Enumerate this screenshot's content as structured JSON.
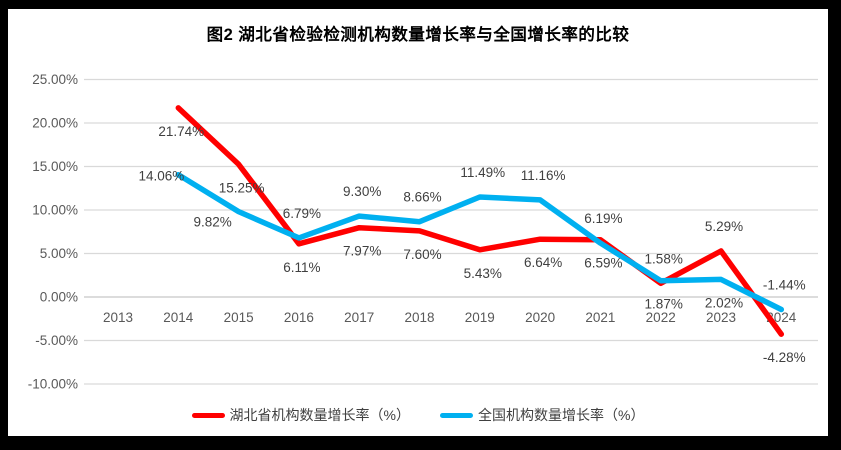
{
  "chart_data": {
    "type": "line",
    "title": "图2  湖北省检验检测机构数量增长率与全国增长率的比较",
    "categories": [
      "2013",
      "2014",
      "2015",
      "2016",
      "2017",
      "2018",
      "2019",
      "2020",
      "2021",
      "2022",
      "2023",
      "2024"
    ],
    "series": [
      {
        "name": "湖北省机构数量增长率（%）",
        "color": "#FF0000",
        "values": [
          null,
          21.74,
          15.25,
          6.11,
          7.97,
          7.6,
          5.43,
          6.64,
          6.59,
          1.58,
          5.29,
          -4.28
        ],
        "labels": [
          null,
          "21.74%",
          "15.25%",
          "6.11%",
          "7.97%",
          "7.60%",
          "5.43%",
          "6.64%",
          "6.59%",
          "1.58%",
          "5.29%",
          "-4.28%"
        ],
        "label_positions": [
          null,
          "below",
          "below",
          "below",
          "below",
          "below",
          "below",
          "below",
          "below",
          "above",
          "above",
          "below"
        ]
      },
      {
        "name": "全国机构数量增长率（%）",
        "color": "#00B0F0",
        "values": [
          null,
          14.06,
          9.82,
          6.79,
          9.3,
          8.66,
          11.49,
          11.16,
          6.19,
          1.87,
          2.02,
          -1.44
        ],
        "labels": [
          null,
          "14.06%",
          "9.82%",
          "6.79%",
          "9.30%",
          "8.66%",
          "11.49%",
          "11.16%",
          "6.19%",
          "1.87%",
          "2.02%",
          "-1.44%"
        ],
        "label_positions": [
          null,
          "left",
          "below-left",
          "above",
          "above",
          "above",
          "above",
          "above",
          "above",
          "below",
          "below",
          "above"
        ]
      }
    ],
    "y_axis": {
      "min": -10,
      "max": 25,
      "step": 5,
      "tick_labels": [
        "25.00%",
        "20.00%",
        "15.00%",
        "10.00%",
        "5.00%",
        "0.00%",
        "-5.00%",
        "-10.00%"
      ]
    },
    "grid": true,
    "legend_position": "bottom",
    "colors": {
      "gridline": "#D9D9D9",
      "axis_line": "#C6C6C6",
      "axis_text": "#595959",
      "data_label_text": "#404040",
      "frame": "#000000",
      "background": "#FFFFFF"
    }
  }
}
